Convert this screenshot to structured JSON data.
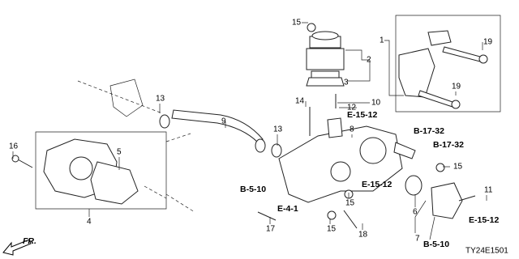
{
  "callouts": [
    "15",
    "1",
    "19",
    "2",
    "3",
    "19",
    "13",
    "9",
    "14",
    "12",
    "10",
    "16",
    "5",
    "13",
    "8",
    "15",
    "15",
    "11",
    "4",
    "17",
    "15",
    "18",
    "6",
    "7"
  ],
  "references": [
    "E-15-12",
    "B-17-32",
    "B-17-32",
    "E-15-12",
    "B-5-10",
    "E-4-1",
    "E-15-12",
    "B-5-10"
  ],
  "direction": "FR.",
  "diagram_id": "TY24E1501"
}
